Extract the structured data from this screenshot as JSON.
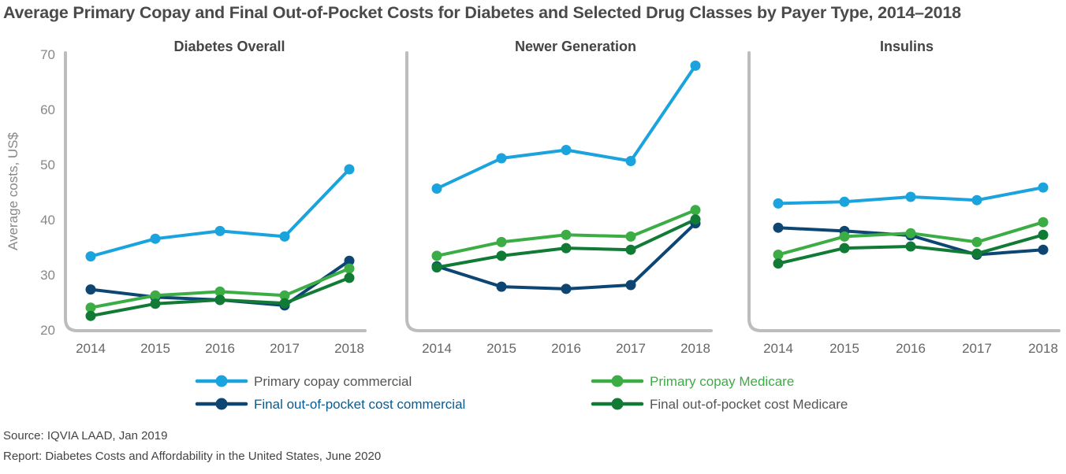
{
  "page": {
    "title": "Average Primary Copay and Final Out-of-Pocket Costs for Diabetes and Selected Drug Classes by Payer Type, 2014–2018",
    "source": "Source: IQVIA LAAD, Jan 2019",
    "report": "Report: Diabetes Costs and Affordability in the United States, June 2020"
  },
  "chart_data": {
    "type": "line",
    "ylabel": "Average costs, US$",
    "ylim": [
      20,
      70
    ],
    "yticks": [
      "20",
      "30",
      "40",
      "50",
      "60",
      "70"
    ],
    "categories": [
      "2014",
      "2015",
      "2016",
      "2017",
      "2018"
    ],
    "legend": [
      {
        "key": "primary_commercial",
        "label": "Primary copay commercial",
        "color": "#1aa3dc",
        "text_color": "#555555"
      },
      {
        "key": "primary_medicare",
        "label": "Primary copay Medicare",
        "color": "#3cad45",
        "text_color": "#3cad45"
      },
      {
        "key": "final_commercial",
        "label": "Final out-of-pocket cost commercial",
        "color": "#0d4673",
        "text_color": "#0d5a8c"
      },
      {
        "key": "final_medicare",
        "label": "Final out-of-pocket cost Medicare",
        "color": "#117a35",
        "text_color": "#555555"
      }
    ],
    "panels": [
      {
        "title": "Diabetes Overall",
        "series": {
          "primary_commercial": [
            33.2,
            36.4,
            37.8,
            36.8,
            49.0
          ],
          "primary_medicare": [
            23.9,
            26.1,
            26.8,
            26.1,
            31.0
          ],
          "final_commercial": [
            27.2,
            25.8,
            25.3,
            24.3,
            32.4
          ],
          "final_medicare": [
            22.4,
            24.6,
            25.3,
            24.7,
            29.3
          ]
        }
      },
      {
        "title": "Newer Generation",
        "series": {
          "primary_commercial": [
            45.5,
            51.0,
            52.5,
            50.5,
            67.8
          ],
          "primary_medicare": [
            33.3,
            35.8,
            37.1,
            36.8,
            41.6
          ],
          "final_commercial": [
            31.4,
            27.7,
            27.3,
            28.0,
            39.2
          ],
          "final_medicare": [
            31.2,
            33.3,
            34.7,
            34.4,
            39.9
          ]
        }
      },
      {
        "title": "Insulins",
        "series": {
          "primary_commercial": [
            42.8,
            43.1,
            44.0,
            43.4,
            45.7
          ],
          "primary_medicare": [
            33.5,
            36.8,
            37.4,
            35.8,
            39.4
          ],
          "final_commercial": [
            38.4,
            37.8,
            37.0,
            33.5,
            34.4
          ],
          "final_medicare": [
            31.9,
            34.7,
            35.0,
            33.7,
            37.1
          ]
        }
      }
    ]
  }
}
